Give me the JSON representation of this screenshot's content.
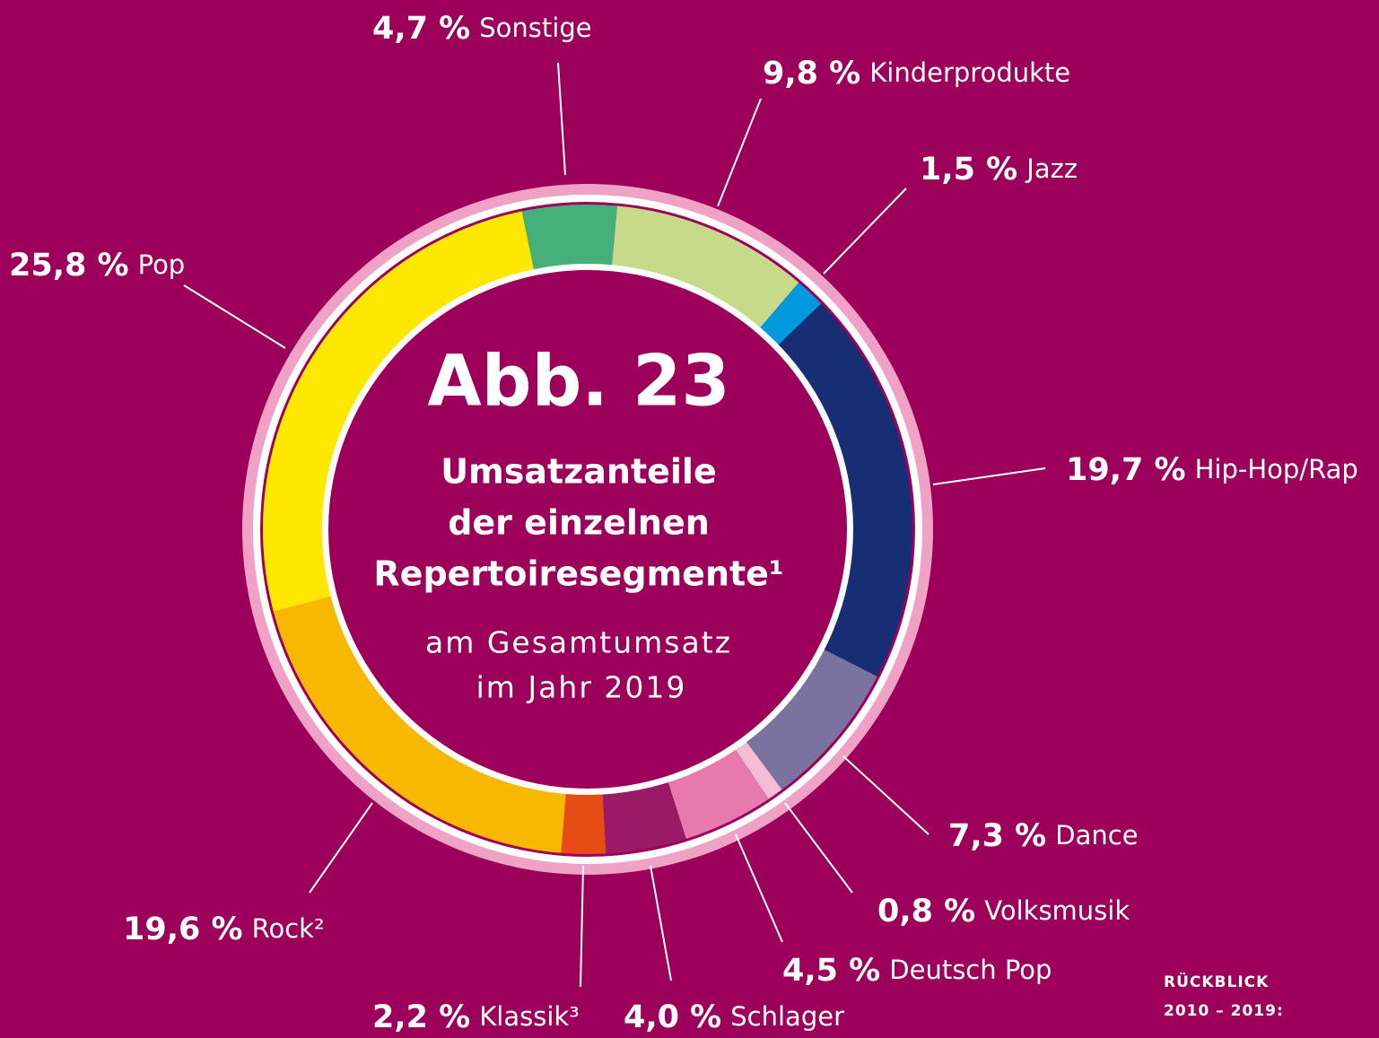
{
  "chart_data": {
    "type": "donut",
    "figure_label": "Abb. 23",
    "title_lines": [
      "Umsatzanteile",
      "der einzelnen",
      "Repertoiresegmente¹"
    ],
    "subtitle_lines": [
      "am Gesamtumsatz",
      "im Jahr 2019"
    ],
    "categories": [
      "Sonstige",
      "Kinderprodukte",
      "Jazz",
      "Hip-Hop/Rap",
      "Dance",
      "Volksmusik",
      "Deutsch Pop",
      "Schlager",
      "Klassik³",
      "Rock²",
      "Pop"
    ],
    "values": [
      4.7,
      9.8,
      1.5,
      19.7,
      7.3,
      0.8,
      4.5,
      4.0,
      2.2,
      19.6,
      25.8
    ],
    "value_labels": [
      "4,7 %",
      "9,8 %",
      "1,5 %",
      "19,7 %",
      "7,3 %",
      "0,8 %",
      "4,5 %",
      "4,0 %",
      "2,2 %",
      "19,6 %",
      "25,8 %"
    ],
    "colors": [
      "#46b07a",
      "#c6da8a",
      "#0099dd",
      "#172d74",
      "#7a73a0",
      "#f5bcd5",
      "#e879ad",
      "#9a1a67",
      "#e84c15",
      "#f9b800",
      "#ffe800"
    ],
    "footer": [
      "RÜCKBLICK",
      "2010 – 2019:"
    ]
  }
}
